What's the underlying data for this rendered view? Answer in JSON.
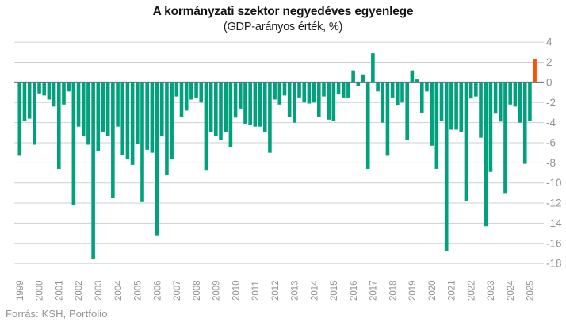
{
  "title": "A kormányzati szektor negyedéves egyenlege",
  "subtitle": "(GDP-arányos érték, %)",
  "source": "Forrás: KSH, Portfolio",
  "chart_data": {
    "type": "bar",
    "unit": "% of GDP",
    "start_period": "1999 Q1",
    "end_period": "2025 Q2",
    "x_tick_labels": [
      "1999",
      "2000",
      "2001",
      "2002",
      "2003",
      "2004",
      "2005",
      "2006",
      "2007",
      "2008",
      "2009",
      "2010",
      "2011",
      "2012",
      "2013",
      "2014",
      "2015",
      "2016",
      "2017",
      "2018",
      "2019",
      "2020",
      "2021",
      "2022",
      "2023",
      "2024",
      "2025"
    ],
    "y_tick_labels": [
      "4",
      "2",
      "0",
      "-2",
      "-4",
      "-6",
      "-8",
      "-10",
      "-12",
      "-14",
      "-16",
      "-18"
    ],
    "ylim": [
      -18,
      4
    ],
    "grid": "horizontal",
    "legend": "none",
    "bar_color": "#00a17c",
    "highlight_color": "#f9530a",
    "highlight_index": 105,
    "zero_line_color": "#5d7085",
    "grid_color": "#cfcfcf",
    "axis_label_color": "#8f9499",
    "values": [
      -7.3,
      -3.8,
      -3.6,
      -6.2,
      -1.1,
      -1.3,
      -1.7,
      -2.4,
      -8.6,
      -2.2,
      -0.9,
      -12.2,
      -4.4,
      -5.3,
      -6.2,
      -17.6,
      -6.8,
      -4.9,
      -5.3,
      -11.5,
      -4.4,
      -7.2,
      -7.6,
      -8.2,
      -6.1,
      -11.9,
      -6.7,
      -7.0,
      -15.2,
      -5.3,
      -9.2,
      -7.6,
      -1.4,
      -3.4,
      -2.8,
      -1.7,
      -1.5,
      -2.0,
      -8.7,
      -4.9,
      -5.3,
      -5.7,
      -4.9,
      -6.4,
      -3.5,
      -2.6,
      -4.1,
      -4.2,
      -4.4,
      -4.4,
      -4.9,
      -7.0,
      -1.7,
      -2.2,
      -1.3,
      -3.4,
      -4.0,
      -1.5,
      -2.0,
      -2.1,
      -2.0,
      -3.4,
      -1.4,
      -3.7,
      -3.8,
      -1.2,
      -1.5,
      -1.5,
      1.2,
      -0.4,
      0.8,
      -8.6,
      2.9,
      -0.9,
      -4.0,
      -7.3,
      -1.5,
      -2.3,
      -2.0,
      -5.7,
      1.2,
      0.3,
      -3.0,
      -0.9,
      -6.3,
      -8.6,
      -3.8,
      -16.8,
      -4.7,
      -4.7,
      -4.9,
      -11.8,
      -1.6,
      -1.4,
      -5.5,
      -14.3,
      -8.9,
      -3.1,
      -3.9,
      -11.0,
      -2.2,
      -2.4,
      -4.0,
      -8.1,
      -3.8,
      2.3
    ]
  }
}
